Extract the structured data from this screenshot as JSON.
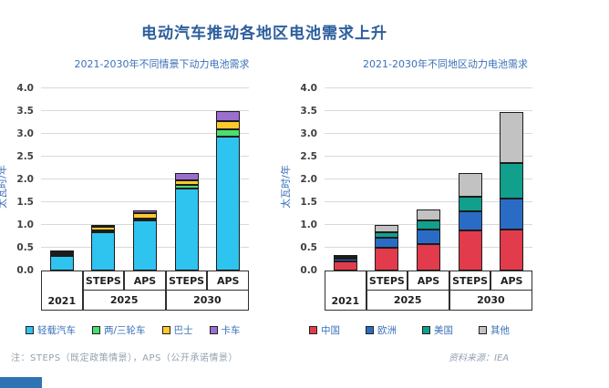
{
  "page": {
    "title": "电动汽车推动各地区电池需求上升",
    "note": "注：STEPS（既定政策情景），APS（公开承诺情景）",
    "source": "资料来源：IEA"
  },
  "colors": {
    "title_blue": "#2D5E9C",
    "subtitle_blue": "#3A70B8",
    "gridline_gray": "#D9D9D9",
    "corner_strip_blue": "#2E74B5"
  },
  "chart_data": [
    {
      "type": "bar",
      "stacked": true,
      "title": "2021-2030年不同情景下动力电池需求",
      "ylabel": "太瓦时/年",
      "ylim": [
        0,
        4.0
      ],
      "ytick_step": 0.5,
      "grid": true,
      "legend_position": "bottom",
      "categories": [
        "2021",
        "STEPS",
        "APS",
        "STEPS",
        "APS"
      ],
      "groups": [
        {
          "label": "2021",
          "subs": [
            ""
          ]
        },
        {
          "label": "2025",
          "subs": [
            "STEPS",
            "APS"
          ]
        },
        {
          "label": "2030",
          "subs": [
            "STEPS",
            "APS"
          ]
        }
      ],
      "series": [
        {
          "name": "轻载汽车",
          "color": "#2FC3EF",
          "values": [
            0.32,
            0.85,
            1.1,
            1.8,
            2.95
          ]
        },
        {
          "name": "两/三轮车",
          "color": "#4ADE70",
          "values": [
            0.01,
            0.04,
            0.05,
            0.08,
            0.15
          ]
        },
        {
          "name": "巴士",
          "color": "#FFC92B",
          "values": [
            0.01,
            0.07,
            0.12,
            0.1,
            0.18
          ]
        },
        {
          "name": "卡车",
          "color": "#9A6FD0",
          "values": [
            0.01,
            0.04,
            0.06,
            0.17,
            0.22
          ]
        }
      ]
    },
    {
      "type": "bar",
      "stacked": true,
      "title": "2021-2030年不同地区动力电池需求",
      "ylabel": "太瓦时/年",
      "ylim": [
        0,
        4.0
      ],
      "ytick_step": 0.5,
      "grid": true,
      "legend_position": "bottom",
      "categories": [
        "2021",
        "STEPS",
        "APS",
        "STEPS",
        "APS"
      ],
      "groups": [
        {
          "label": "2021",
          "subs": [
            ""
          ]
        },
        {
          "label": "2025",
          "subs": [
            "STEPS",
            "APS"
          ]
        },
        {
          "label": "2030",
          "subs": [
            "STEPS",
            "APS"
          ]
        }
      ],
      "series": [
        {
          "name": "中国",
          "color": "#E23B4C",
          "values": [
            0.2,
            0.5,
            0.58,
            0.88,
            0.9
          ]
        },
        {
          "name": "欧洲",
          "color": "#2A6CC5",
          "values": [
            0.06,
            0.23,
            0.33,
            0.42,
            0.68
          ]
        },
        {
          "name": "美国",
          "color": "#11A08C",
          "values": [
            0.04,
            0.12,
            0.2,
            0.33,
            0.78
          ]
        },
        {
          "name": "其他",
          "color": "#C2C2C2",
          "values": [
            0.03,
            0.15,
            0.24,
            0.52,
            1.12
          ]
        }
      ]
    }
  ]
}
